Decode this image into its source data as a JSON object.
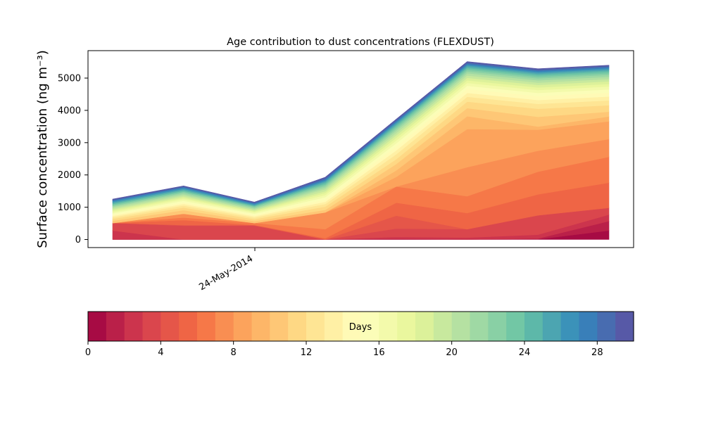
{
  "chart_data": {
    "type": "area",
    "title": "Age contribution to dust concentrations (FLEXDUST)",
    "xlabel": "",
    "ylabel": "Surface concentration (ng m⁻³)",
    "x_tick_labels": [
      "24-May-2014"
    ],
    "ylim": [
      -250,
      5850
    ],
    "yticks": [
      0,
      1000,
      2000,
      3000,
      4000,
      5000
    ],
    "x": [
      0,
      1,
      2,
      3,
      4,
      5,
      6,
      7
    ],
    "colorbar": {
      "label": "Days",
      "range": [
        0,
        30
      ],
      "ticks": [
        0,
        4,
        8,
        12,
        16,
        20,
        24,
        28
      ],
      "colormap": "Spectral"
    },
    "series_note": "30 stacked bands, one per age day 0-29; values are per-day contributions read from stacked boundaries",
    "series": [
      {
        "values": [
          0,
          0,
          0,
          0,
          0,
          0,
          10,
          280
        ]
      },
      {
        "values": [
          0,
          0,
          0,
          0,
          20,
          0,
          20,
          290
        ]
      },
      {
        "values": [
          280,
          0,
          0,
          0,
          60,
          60,
          120,
          200
        ]
      },
      {
        "values": [
          230,
          430,
          430,
          0,
          260,
          260,
          600,
          210
        ]
      },
      {
        "values": [
          0,
          20,
          20,
          0,
          400,
          0,
          0,
          0
        ]
      },
      {
        "values": [
          0,
          150,
          0,
          40,
          400,
          500,
          650,
          780
        ]
      },
      {
        "values": [
          0,
          80,
          60,
          280,
          500,
          520,
          700,
          800
        ]
      },
      {
        "values": [
          0,
          120,
          0,
          520,
          0,
          900,
          650,
          550
        ]
      },
      {
        "values": [
          0,
          0,
          0,
          0,
          300,
          1180,
          650,
          550
        ]
      },
      {
        "values": [
          0,
          0,
          0,
          0,
          200,
          400,
          100,
          150
        ]
      },
      {
        "values": [
          70,
          110,
          60,
          80,
          200,
          250,
          300,
          150
        ]
      },
      {
        "values": [
          60,
          80,
          60,
          100,
          150,
          200,
          250,
          200
        ]
      },
      {
        "values": [
          50,
          60,
          50,
          80,
          150,
          150,
          150,
          150
        ]
      },
      {
        "values": [
          40,
          50,
          40,
          70,
          120,
          120,
          120,
          120
        ]
      },
      {
        "values": [
          40,
          50,
          40,
          70,
          120,
          120,
          120,
          120
        ]
      },
      {
        "values": [
          40,
          50,
          40,
          70,
          100,
          100,
          100,
          100
        ]
      },
      {
        "values": [
          40,
          50,
          40,
          70,
          90,
          90,
          90,
          90
        ]
      },
      {
        "values": [
          40,
          40,
          30,
          60,
          80,
          80,
          80,
          80
        ]
      },
      {
        "values": [
          40,
          40,
          30,
          60,
          80,
          80,
          80,
          80
        ]
      },
      {
        "values": [
          40,
          40,
          30,
          60,
          70,
          70,
          70,
          70
        ]
      },
      {
        "values": [
          40,
          40,
          30,
          50,
          70,
          70,
          70,
          70
        ]
      },
      {
        "values": [
          30,
          40,
          30,
          50,
          60,
          60,
          60,
          60
        ]
      },
      {
        "values": [
          30,
          30,
          30,
          40,
          50,
          50,
          50,
          50
        ]
      },
      {
        "values": [
          30,
          30,
          20,
          40,
          50,
          50,
          50,
          50
        ]
      },
      {
        "values": [
          30,
          30,
          20,
          40,
          40,
          40,
          40,
          40
        ]
      },
      {
        "values": [
          30,
          30,
          20,
          30,
          40,
          40,
          40,
          40
        ]
      },
      {
        "values": [
          30,
          30,
          20,
          30,
          30,
          30,
          30,
          30
        ]
      },
      {
        "values": [
          20,
          20,
          20,
          30,
          30,
          30,
          30,
          30
        ]
      },
      {
        "values": [
          20,
          20,
          20,
          30,
          30,
          30,
          30,
          30
        ]
      },
      {
        "values": [
          20,
          20,
          20,
          30,
          30,
          30,
          30,
          30
        ]
      }
    ]
  }
}
